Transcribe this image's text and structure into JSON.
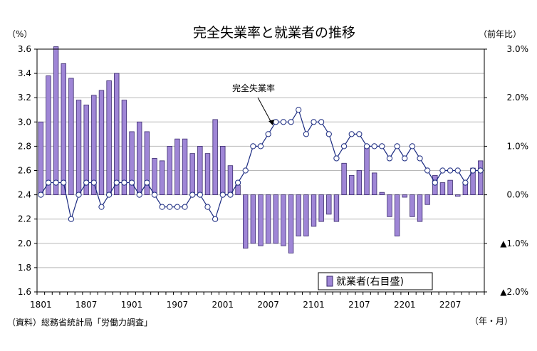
{
  "chart_data": {
    "type": "bar+line",
    "title": "完全失業率と就業者の推移",
    "left_unit": "（%）",
    "right_unit": "（前年比）",
    "x_unit": "（年・月）",
    "source": "（資料）総務省統計局「労働力調査」",
    "line_label": "完全失業率",
    "legend_label": "就業者(右目盛)",
    "legend_position": "bottom-right",
    "grid": true,
    "colors": {
      "bar": "#9f86d6",
      "bar_stroke": "#3a2a6e",
      "line": "#1a2a80",
      "marker_fill": "#ffffff"
    },
    "left_axis": {
      "ylim": [
        1.6,
        3.6
      ],
      "ticks": [
        "1.6",
        "1.8",
        "2.0",
        "2.2",
        "2.4",
        "2.6",
        "2.8",
        "3.0",
        "3.2",
        "3.4",
        "3.6"
      ]
    },
    "right_axis": {
      "ylim": [
        -2.0,
        3.0
      ],
      "ticks": [
        {
          "value": -2.0,
          "label": "▲2.0%"
        },
        {
          "value": -1.0,
          "label": "▲1.0%"
        },
        {
          "value": 0.0,
          "label": "0.0%"
        },
        {
          "value": 1.0,
          "label": "1.0%"
        },
        {
          "value": 2.0,
          "label": "2.0%"
        },
        {
          "value": 3.0,
          "label": "3.0%"
        }
      ]
    },
    "x_tick_labels": [
      {
        "index": 0,
        "label": "1801"
      },
      {
        "index": 6,
        "label": "1807"
      },
      {
        "index": 12,
        "label": "1901"
      },
      {
        "index": 18,
        "label": "1907"
      },
      {
        "index": 24,
        "label": "2001"
      },
      {
        "index": 30,
        "label": "2007"
      },
      {
        "index": 36,
        "label": "2101"
      },
      {
        "index": 42,
        "label": "2107"
      },
      {
        "index": 48,
        "label": "2201"
      },
      {
        "index": 54,
        "label": "2207"
      }
    ],
    "x": [
      "1801",
      "1802",
      "1803",
      "1804",
      "1805",
      "1806",
      "1807",
      "1808",
      "1809",
      "1810",
      "1811",
      "1812",
      "1901",
      "1902",
      "1903",
      "1904",
      "1905",
      "1906",
      "1907",
      "1908",
      "1909",
      "1910",
      "1911",
      "1912",
      "2001",
      "2002",
      "2003",
      "2004",
      "2005",
      "2006",
      "2007",
      "2008",
      "2009",
      "2010",
      "2011",
      "2012",
      "2101",
      "2102",
      "2103",
      "2104",
      "2105",
      "2106",
      "2107",
      "2108",
      "2109",
      "2110",
      "2111",
      "2112",
      "2201",
      "2202",
      "2203",
      "2204",
      "2205",
      "2206",
      "2207",
      "2208",
      "2209",
      "2210",
      "2211"
    ],
    "series": [
      {
        "name": "就業者(右目盛)",
        "axis": "right",
        "kind": "bar",
        "values": [
          1.5,
          2.45,
          3.05,
          2.7,
          2.4,
          1.95,
          1.85,
          2.05,
          2.15,
          2.35,
          2.5,
          1.95,
          1.3,
          1.5,
          1.3,
          0.75,
          0.7,
          1.0,
          1.15,
          1.15,
          0.85,
          1.0,
          0.85,
          1.55,
          1.0,
          0.6,
          0.2,
          -1.1,
          -1.0,
          -1.05,
          -1.0,
          -1.0,
          -1.05,
          -1.2,
          -0.85,
          -0.85,
          -0.65,
          -0.55,
          -0.4,
          -0.55,
          0.65,
          0.4,
          0.5,
          1.0,
          0.45,
          0.05,
          -0.45,
          -0.85,
          -0.05,
          -0.45,
          -0.55,
          -0.2,
          0.4,
          0.25,
          0.3,
          -0.03,
          0.25,
          0.55,
          0.7
        ]
      },
      {
        "name": "完全失業率",
        "axis": "left",
        "kind": "line",
        "values": [
          2.4,
          2.5,
          2.5,
          2.5,
          2.2,
          2.4,
          2.5,
          2.5,
          2.3,
          2.4,
          2.5,
          2.5,
          2.5,
          2.4,
          2.5,
          2.4,
          2.3,
          2.3,
          2.3,
          2.3,
          2.4,
          2.4,
          2.3,
          2.2,
          2.4,
          2.4,
          2.5,
          2.6,
          2.8,
          2.8,
          2.9,
          3.0,
          3.0,
          3.0,
          3.1,
          2.9,
          3.0,
          3.0,
          2.9,
          2.7,
          2.8,
          2.9,
          2.9,
          2.8,
          2.8,
          2.8,
          2.7,
          2.8,
          2.7,
          2.8,
          2.7,
          2.6,
          2.5,
          2.6,
          2.6,
          2.6,
          2.5,
          2.6,
          2.6
        ]
      }
    ]
  }
}
